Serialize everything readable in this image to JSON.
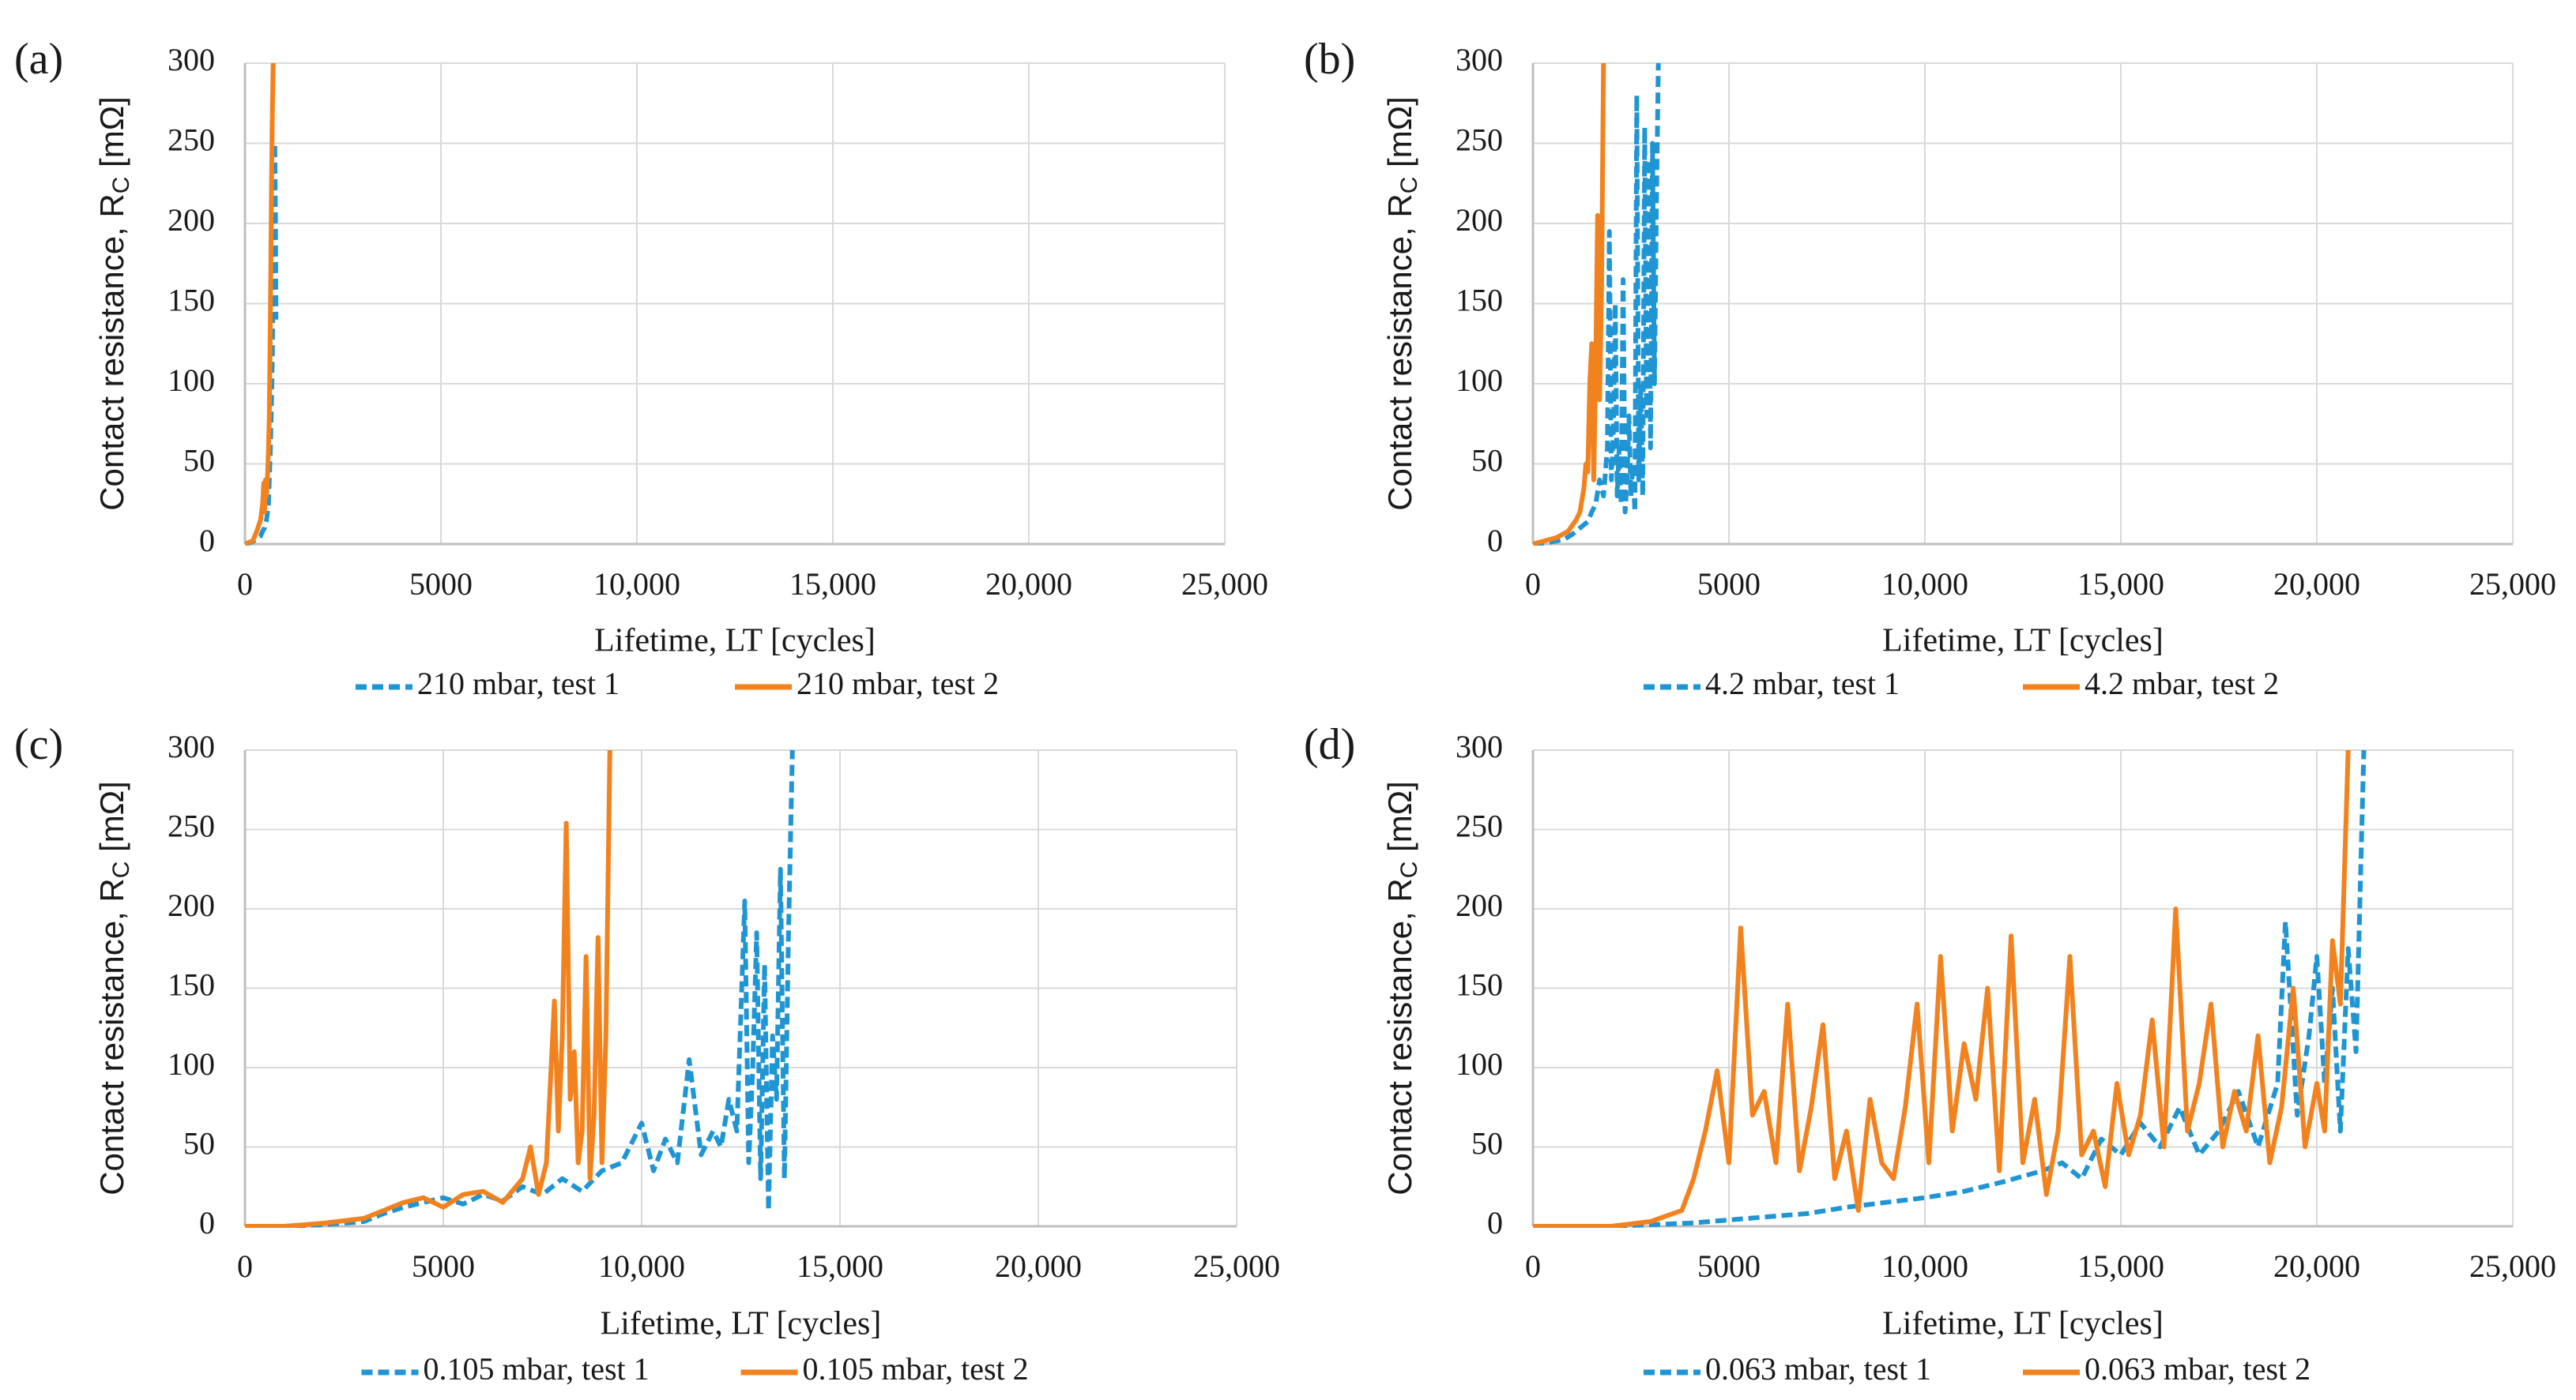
{
  "colors": {
    "series1": "#1f95d3",
    "series2": "#f2821e",
    "grid": "#d9d9d9",
    "axis": "#bfbfbf"
  },
  "chart_data": [
    {
      "panel_label": "(a)",
      "type": "line",
      "xlabel": "Lifetime, LT [cycles]",
      "ylabel_main": "Contact resistance, R",
      "ylabel_sub": "C",
      "ylabel_unit": " [mΩ]",
      "xlim": [
        0,
        25000
      ],
      "ylim": [
        0,
        300
      ],
      "x_ticks": [
        0,
        5000,
        10000,
        15000,
        20000,
        25000
      ],
      "x_tick_labels": [
        "0",
        "5000",
        "10,000",
        "15,000",
        "20,000",
        "25,000"
      ],
      "y_ticks": [
        0,
        50,
        100,
        150,
        200,
        250,
        300
      ],
      "y_tick_labels": [
        "0",
        "50",
        "100",
        "150",
        "200",
        "250",
        "300"
      ],
      "grid": true,
      "legend_position": "bottom",
      "series": [
        {
          "name": "210 mbar, test 1",
          "style": "dashed",
          "color": "#1f95d3",
          "x": [
            0,
            150,
            300,
            400,
            450,
            500,
            550,
            600,
            620,
            650,
            680,
            700,
            720,
            740,
            760,
            780,
            790
          ],
          "y": [
            0,
            1,
            3,
            5,
            8,
            10,
            15,
            25,
            40,
            60,
            90,
            120,
            170,
            220,
            250,
            200,
            140
          ]
        },
        {
          "name": "210 mbar, test 2",
          "style": "solid",
          "color": "#f2821e",
          "x": [
            0,
            200,
            300,
            400,
            450,
            480,
            500,
            520,
            550,
            580,
            600,
            620,
            640,
            660,
            680,
            700,
            720
          ],
          "y": [
            0,
            2,
            8,
            15,
            25,
            38,
            20,
            40,
            30,
            45,
            60,
            80,
            120,
            170,
            230,
            270,
            300
          ]
        }
      ]
    },
    {
      "panel_label": "(b)",
      "type": "line",
      "xlabel": "Lifetime, LT [cycles]",
      "ylabel_main": "Contact resistance, R",
      "ylabel_sub": "C",
      "ylabel_unit": " [mΩ]",
      "xlim": [
        0,
        25000
      ],
      "ylim": [
        0,
        300
      ],
      "x_ticks": [
        0,
        5000,
        10000,
        15000,
        20000,
        25000
      ],
      "x_tick_labels": [
        "0",
        "5000",
        "10,000",
        "15,000",
        "20,000",
        "25,000"
      ],
      "y_ticks": [
        0,
        50,
        100,
        150,
        200,
        250,
        300
      ],
      "y_tick_labels": [
        "0",
        "50",
        "100",
        "150",
        "200",
        "250",
        "300"
      ],
      "grid": true,
      "legend_position": "bottom",
      "series": [
        {
          "name": "4.2 mbar, test 1",
          "style": "dashed",
          "color": "#1f95d3",
          "x": [
            0,
            400,
            800,
            1000,
            1200,
            1400,
            1500,
            1600,
            1700,
            1800,
            1900,
            1950,
            2000,
            2050,
            2100,
            2150,
            2200,
            2250,
            2300,
            2350,
            2400,
            2450,
            2500,
            2550,
            2600,
            2650,
            2700,
            2750,
            2800,
            2850,
            2900,
            2950,
            3000,
            3050,
            3100,
            3150,
            3200
          ],
          "y": [
            0,
            1,
            3,
            6,
            10,
            14,
            20,
            25,
            40,
            30,
            60,
            195,
            40,
            70,
            150,
            30,
            60,
            25,
            165,
            20,
            40,
            80,
            30,
            50,
            20,
            280,
            40,
            100,
            30,
            260,
            80,
            240,
            60,
            250,
            100,
            210,
            300
          ]
        },
        {
          "name": "4.2 mbar, test 2",
          "style": "solid",
          "color": "#f2821e",
          "x": [
            0,
            300,
            600,
            900,
            1100,
            1200,
            1300,
            1350,
            1400,
            1450,
            1500,
            1550,
            1600,
            1650,
            1700,
            1750,
            1800
          ],
          "y": [
            0,
            2,
            4,
            8,
            15,
            20,
            35,
            50,
            45,
            100,
            125,
            40,
            110,
            205,
            90,
            160,
            300
          ]
        }
      ]
    },
    {
      "panel_label": "(c)",
      "type": "line",
      "xlabel": "Lifetime, LT [cycles]",
      "ylabel_main": "Contact resistance, R",
      "ylabel_sub": "C",
      "ylabel_unit": " [mΩ]",
      "xlim": [
        0,
        25000
      ],
      "ylim": [
        0,
        300
      ],
      "x_ticks": [
        0,
        5000,
        10000,
        15000,
        20000,
        25000
      ],
      "x_tick_labels": [
        "0",
        "5000",
        "10,000",
        "15,000",
        "20,000",
        "25,000"
      ],
      "y_ticks": [
        0,
        50,
        100,
        150,
        200,
        250,
        300
      ],
      "y_tick_labels": [
        "0",
        "50",
        "100",
        "150",
        "200",
        "250",
        "300"
      ],
      "grid": true,
      "legend_position": "bottom",
      "series": [
        {
          "name": "0.105 mbar, test 1",
          "style": "dashed",
          "color": "#1f95d3",
          "x": [
            0,
            1000,
            2000,
            3000,
            3500,
            4000,
            4500,
            5000,
            5500,
            6000,
            6500,
            7000,
            7500,
            8000,
            8500,
            9000,
            9500,
            10000,
            10300,
            10600,
            10900,
            11200,
            11500,
            11800,
            12000,
            12200,
            12400,
            12600,
            12700,
            12800,
            12900,
            13000,
            13100,
            13200,
            13300,
            13400,
            13500,
            13600,
            13700,
            13800
          ],
          "y": [
            0,
            0,
            1,
            3,
            8,
            12,
            15,
            18,
            14,
            20,
            16,
            25,
            20,
            30,
            22,
            35,
            40,
            65,
            35,
            55,
            40,
            105,
            45,
            60,
            50,
            80,
            60,
            205,
            40,
            100,
            185,
            30,
            165,
            10,
            120,
            80,
            225,
            30,
            180,
            300
          ]
        },
        {
          "name": "0.105 mbar, test 2",
          "style": "solid",
          "color": "#f2821e",
          "x": [
            0,
            1000,
            2000,
            3000,
            3500,
            4000,
            4500,
            5000,
            5500,
            6000,
            6500,
            7000,
            7200,
            7400,
            7600,
            7700,
            7800,
            7900,
            8000,
            8100,
            8200,
            8300,
            8400,
            8500,
            8600,
            8700,
            8800,
            8900,
            9000,
            9100,
            9200
          ],
          "y": [
            0,
            0,
            2,
            5,
            10,
            15,
            18,
            12,
            20,
            22,
            15,
            30,
            50,
            20,
            40,
            90,
            142,
            60,
            120,
            254,
            80,
            110,
            40,
            60,
            170,
            30,
            70,
            182,
            40,
            120,
            300
          ]
        }
      ]
    },
    {
      "panel_label": "(d)",
      "type": "line",
      "xlabel": "Lifetime, LT [cycles]",
      "ylabel_main": "Contact resistance, R",
      "ylabel_sub": "C",
      "ylabel_unit": " [mΩ]",
      "xlim": [
        0,
        25000
      ],
      "ylim": [
        0,
        300
      ],
      "x_ticks": [
        0,
        5000,
        10000,
        15000,
        20000,
        25000
      ],
      "x_tick_labels": [
        "0",
        "5000",
        "10,000",
        "15,000",
        "20,000",
        "25,000"
      ],
      "y_ticks": [
        0,
        50,
        100,
        150,
        200,
        250,
        300
      ],
      "y_tick_labels": [
        "0",
        "50",
        "100",
        "150",
        "200",
        "250",
        "300"
      ],
      "grid": true,
      "legend_position": "bottom",
      "series": [
        {
          "name": "0.063 mbar, test 1",
          "style": "dashed",
          "color": "#1f95d3",
          "x": [
            0,
            2000,
            4000,
            5000,
            6000,
            7000,
            8000,
            9000,
            10000,
            11000,
            12000,
            13000,
            13500,
            14000,
            14500,
            15000,
            15500,
            16000,
            16500,
            17000,
            17500,
            18000,
            18500,
            19000,
            19200,
            19500,
            19800,
            20000,
            20200,
            20400,
            20600,
            20800,
            21000,
            21200
          ],
          "y": [
            0,
            0,
            2,
            4,
            6,
            8,
            12,
            15,
            18,
            22,
            28,
            35,
            40,
            30,
            55,
            45,
            65,
            50,
            75,
            45,
            60,
            85,
            50,
            90,
            192,
            70,
            120,
            170,
            90,
            150,
            60,
            175,
            110,
            300
          ]
        },
        {
          "name": "0.063 mbar, test 2",
          "style": "solid",
          "color": "#f2821e",
          "x": [
            0,
            2000,
            3000,
            3800,
            4100,
            4400,
            4700,
            5000,
            5300,
            5600,
            5900,
            6200,
            6500,
            6800,
            7100,
            7400,
            7700,
            8000,
            8300,
            8600,
            8900,
            9200,
            9500,
            9800,
            10100,
            10400,
            10700,
            11000,
            11300,
            11600,
            11900,
            12200,
            12500,
            12800,
            13100,
            13400,
            13700,
            14000,
            14300,
            14600,
            14900,
            15200,
            15500,
            15800,
            16100,
            16400,
            16700,
            17000,
            17300,
            17600,
            17900,
            18200,
            18500,
            18800,
            19100,
            19400,
            19700,
            20000,
            20200,
            20400,
            20600,
            20800
          ],
          "y": [
            0,
            0,
            3,
            10,
            30,
            60,
            98,
            40,
            188,
            70,
            85,
            40,
            140,
            35,
            75,
            127,
            30,
            60,
            10,
            80,
            40,
            30,
            75,
            140,
            40,
            170,
            60,
            115,
            80,
            150,
            35,
            183,
            40,
            80,
            20,
            60,
            170,
            45,
            60,
            25,
            90,
            45,
            70,
            130,
            50,
            200,
            60,
            90,
            140,
            50,
            85,
            60,
            120,
            40,
            75,
            150,
            50,
            90,
            60,
            180,
            140,
            300
          ]
        }
      ]
    }
  ]
}
